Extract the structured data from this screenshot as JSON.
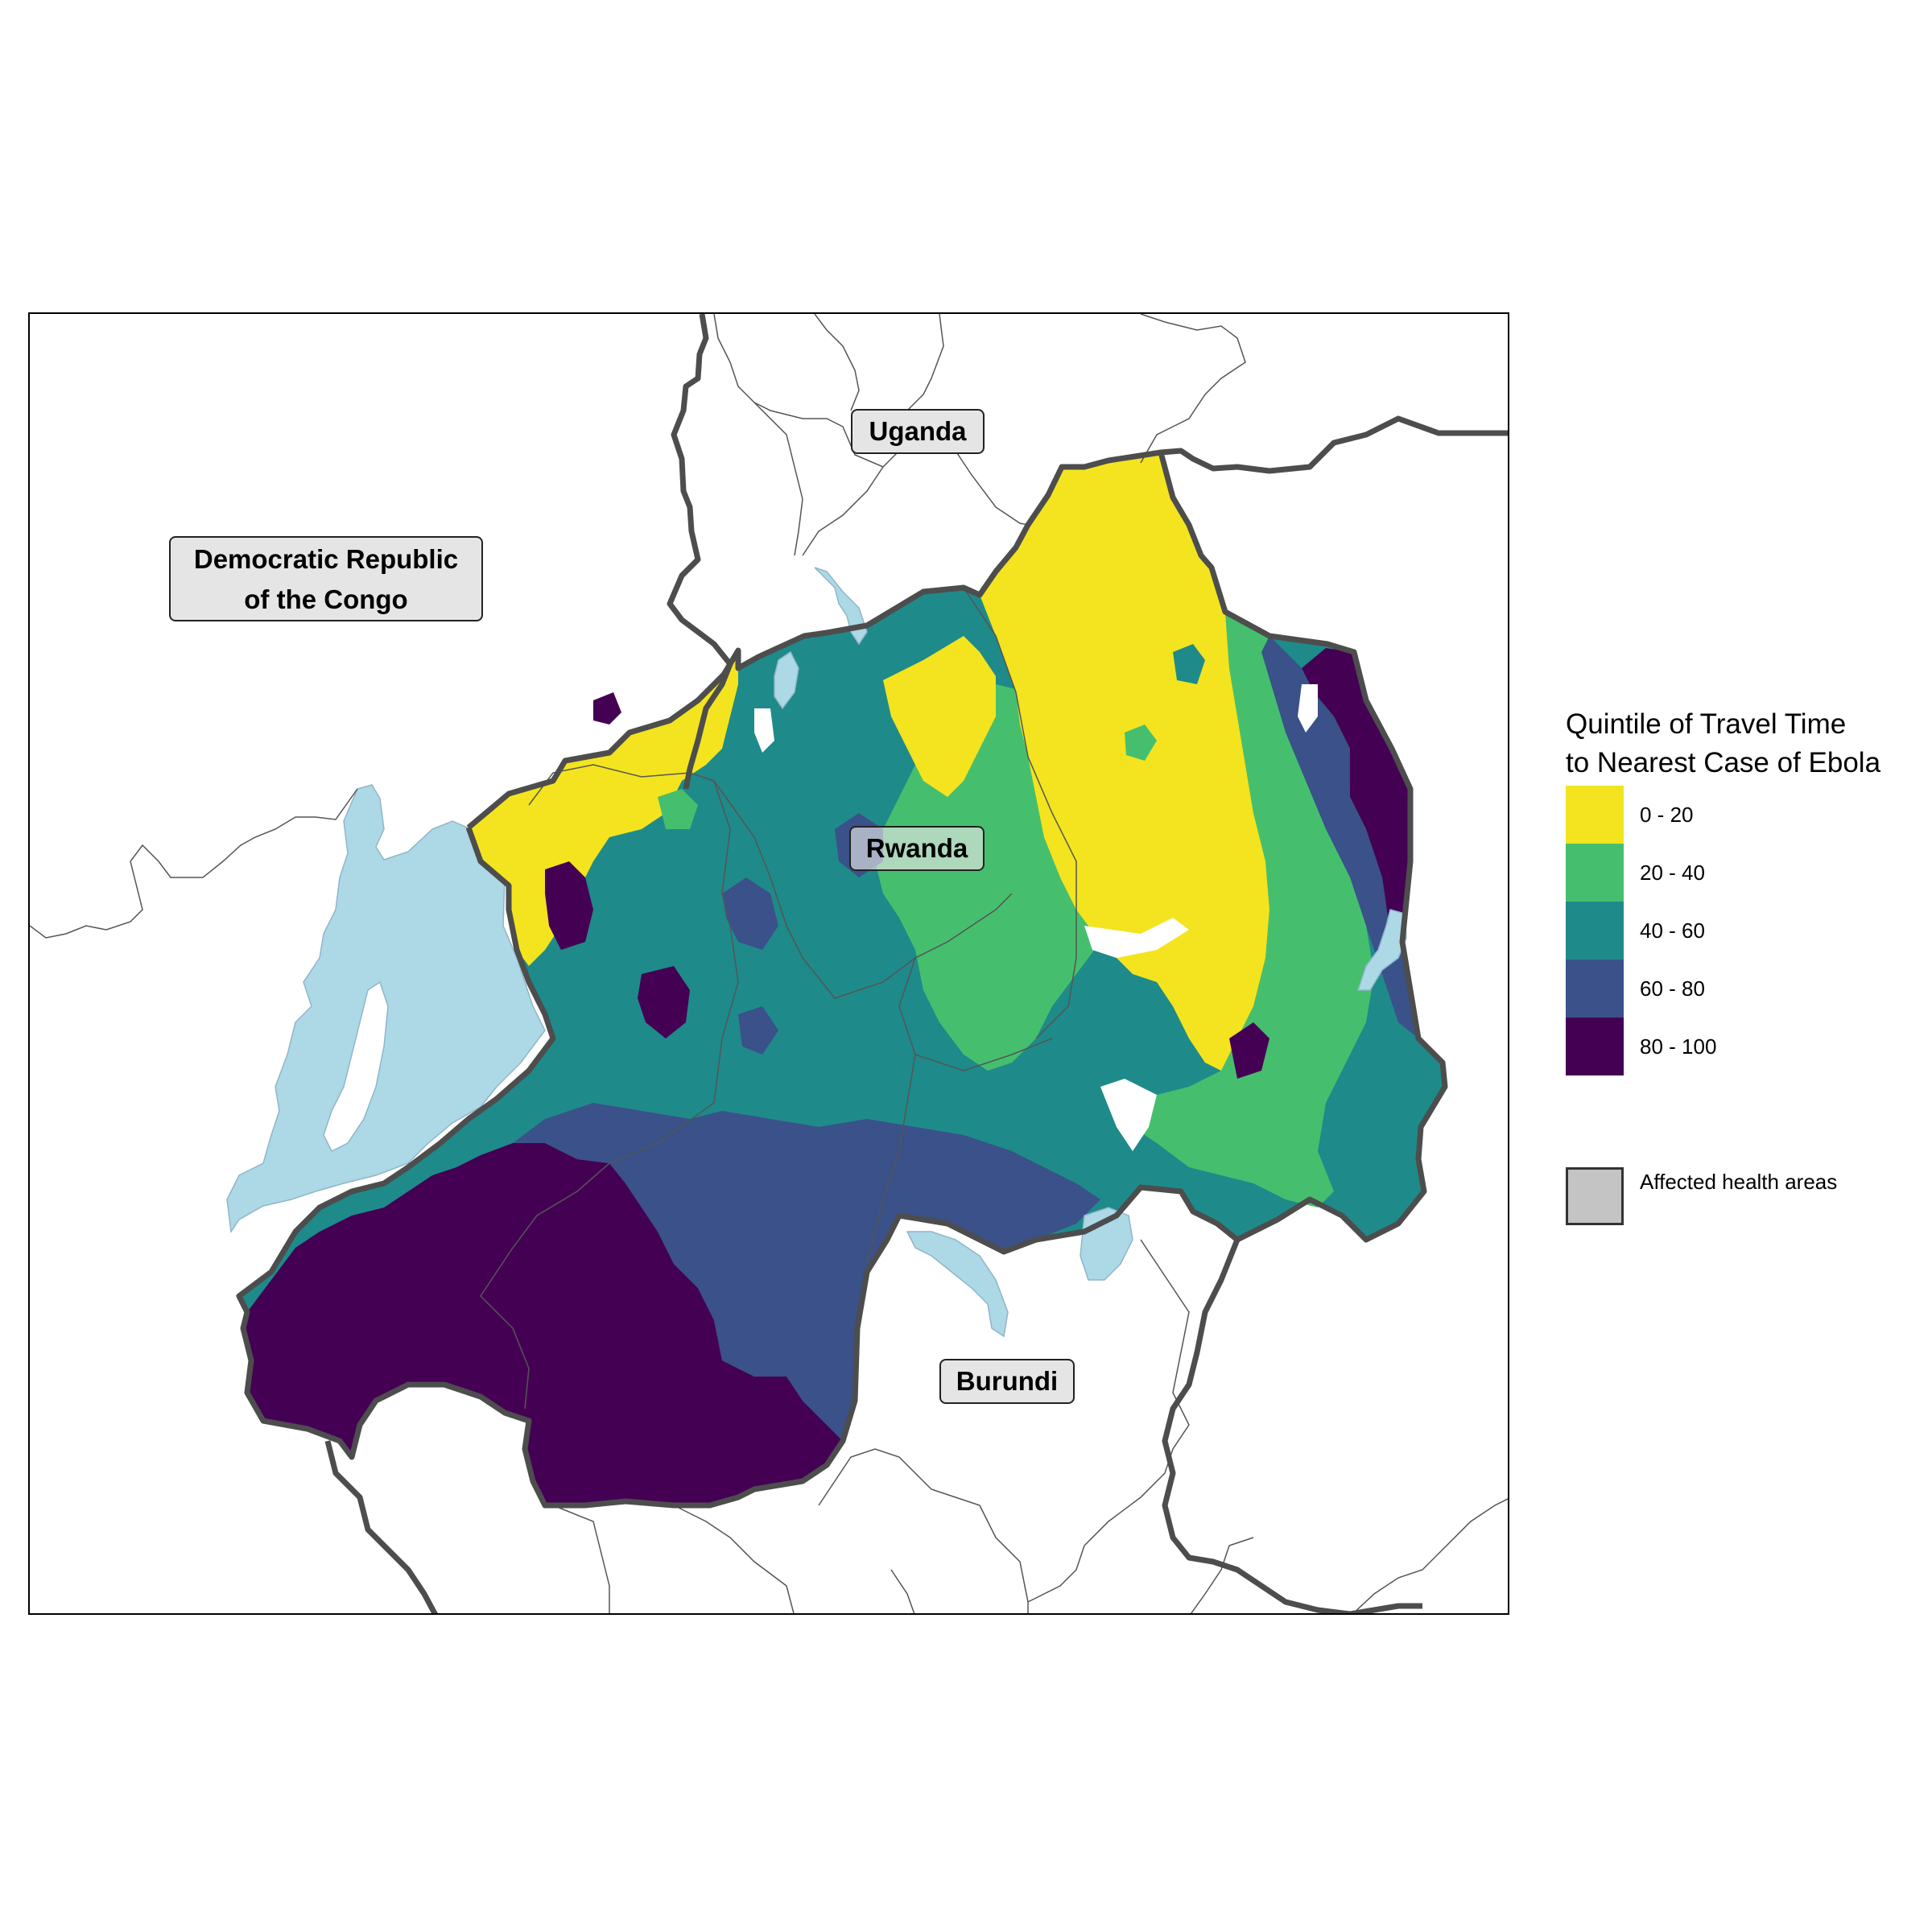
{
  "legend": {
    "title_line1": "Quintile of Travel Time",
    "title_line2": "to Nearest Case of Ebola",
    "items": [
      {
        "label": "0 - 20",
        "color": "#f3e41f"
      },
      {
        "label": "20 - 40",
        "color": "#45bf6d"
      },
      {
        "label": "40 - 60",
        "color": "#1f8a8a"
      },
      {
        "label": "60 - 80",
        "color": "#3a5189"
      },
      {
        "label": "80 - 100",
        "color": "#440154"
      }
    ],
    "affected_label": "Affected health areas",
    "affected_color": "#c4c4c4"
  },
  "labels": {
    "drc": "Democratic Republic of the Congo",
    "uganda": "Uganda",
    "rwanda": "Rwanda",
    "burundi": "Burundi"
  },
  "colors": {
    "water": "#add8e6",
    "border": "#4d4d4d",
    "admin_line": "#555555"
  }
}
